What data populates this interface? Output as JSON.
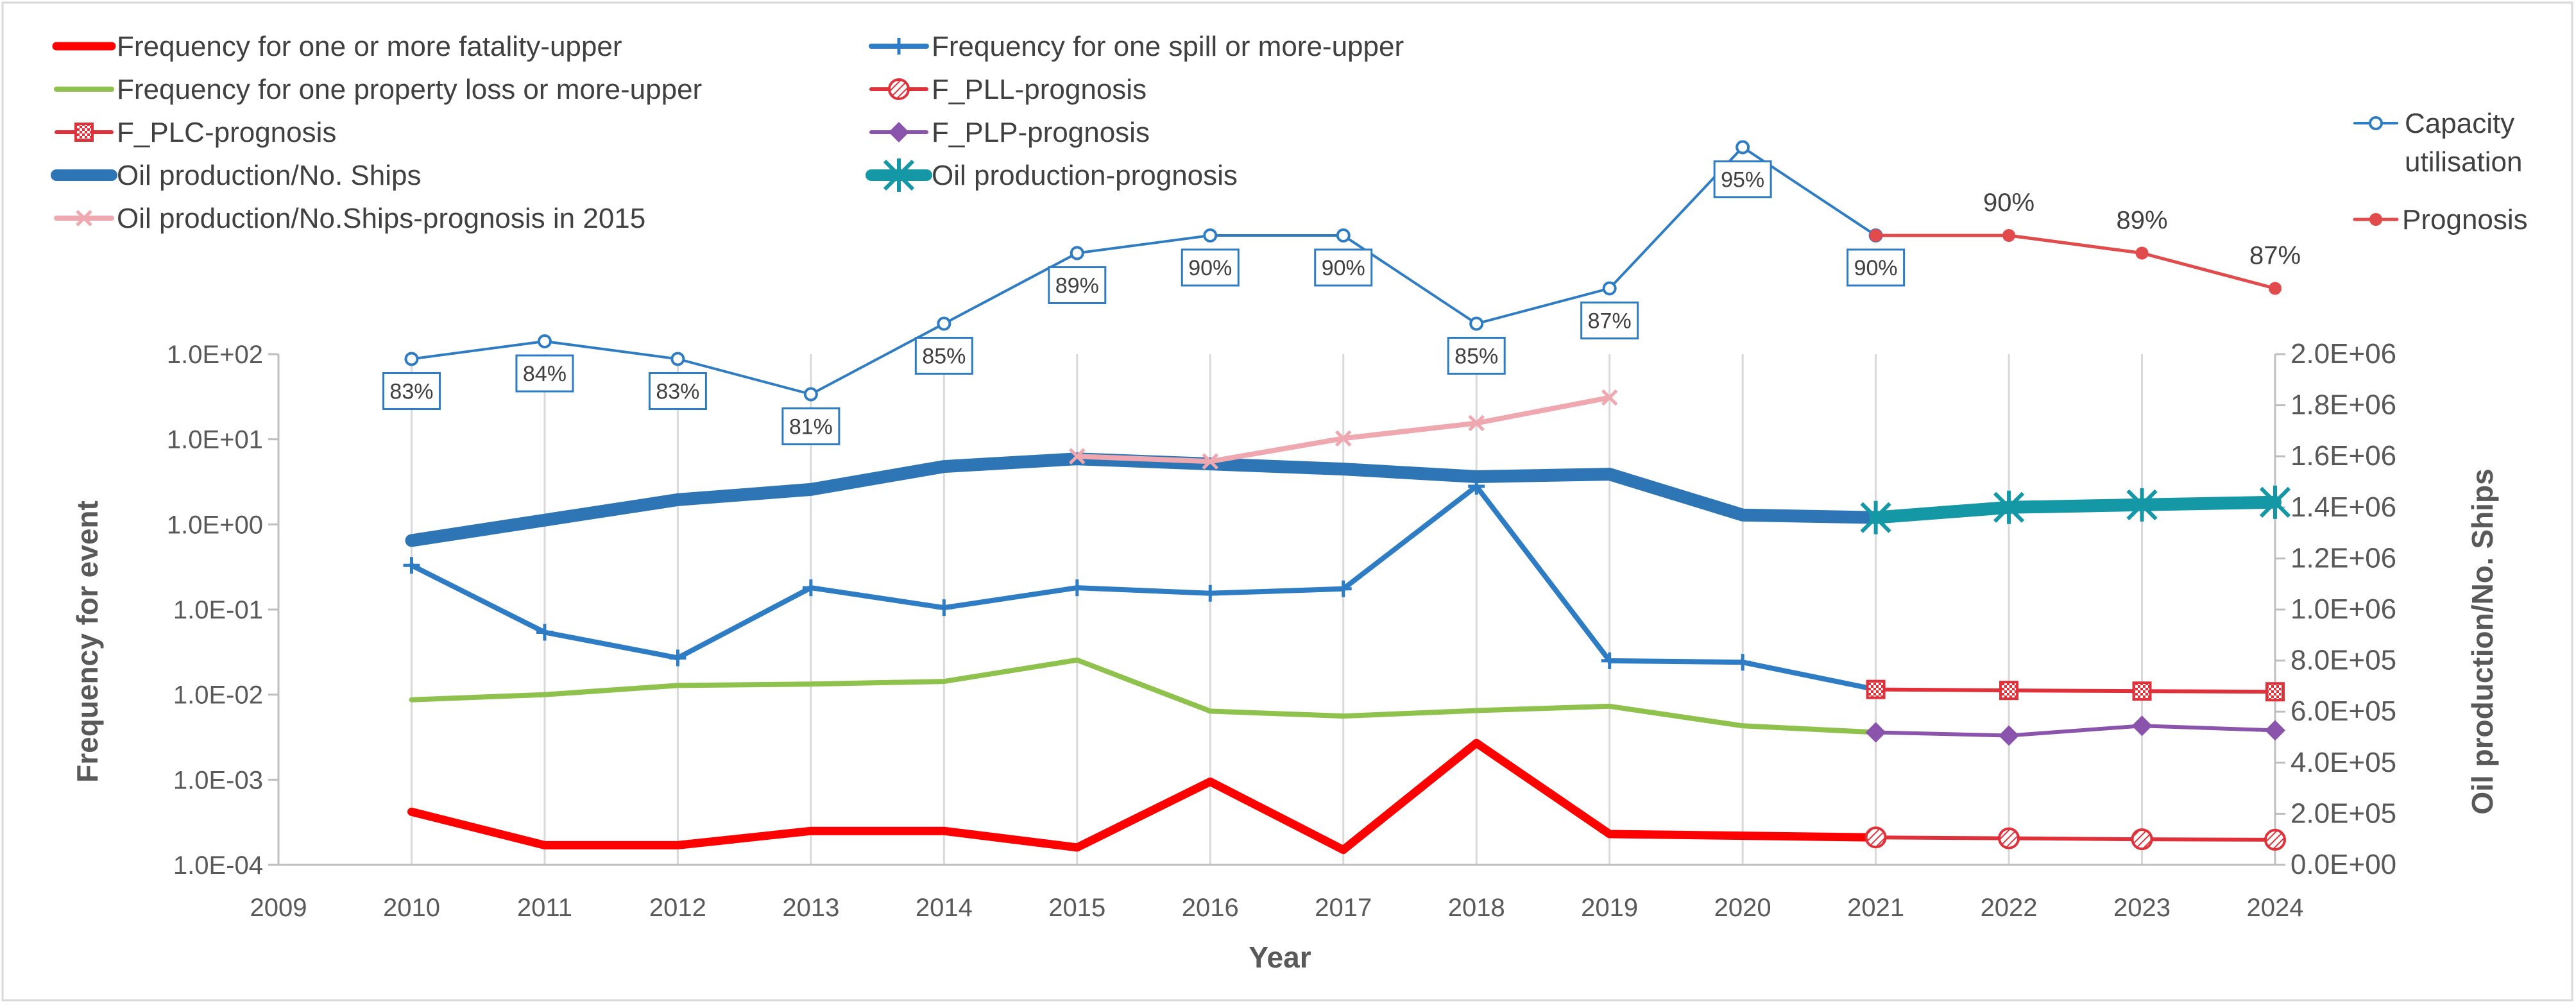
{
  "chart_data": {
    "type": "line",
    "xlabel": "Year",
    "ylabel_left": "Frequency for event",
    "ylabel_right": "Oil production/No. Ships",
    "xlim": [
      2009,
      2024
    ],
    "x_ticks": [
      "2009",
      "2010",
      "2011",
      "2012",
      "2013",
      "2014",
      "2015",
      "2016",
      "2017",
      "2018",
      "2019",
      "2020",
      "2021",
      "2022",
      "2023",
      "2024"
    ],
    "y_left_scale": "log",
    "y_left_ticks": [
      "1.0E-04",
      "1.0E-03",
      "1.0E-02",
      "1.0E-01",
      "1.0E+00",
      "1.0E+01",
      "1.0E+02"
    ],
    "y_right_ticks": [
      "0.0E+00",
      "2.0E+05",
      "4.0E+05",
      "6.0E+05",
      "8.0E+05",
      "1.0E+06",
      "1.2E+06",
      "1.4E+06",
      "1.6E+06",
      "1.8E+06",
      "2.0E+06"
    ],
    "y_right_range": [
      0,
      2000000
    ],
    "capacity_range": [
      80,
      100
    ],
    "series": [
      {
        "name": "Frequency for one or more fatality-upper",
        "axis": "left",
        "color": "#ff0000",
        "width": 13,
        "marker": "none",
        "x": [
          2010,
          2011,
          2012,
          2013,
          2014,
          2015,
          2016,
          2017,
          2018,
          2019,
          2020,
          2021
        ],
        "values": [
          0.00042,
          0.00017,
          0.00017,
          0.00025,
          0.00025,
          0.00016,
          0.00095,
          0.00015,
          0.0027,
          0.00023,
          0.00022,
          0.00021
        ]
      },
      {
        "name": "Frequency for one spill or more-upper",
        "axis": "left",
        "color": "#2e7cc4",
        "width": 8,
        "marker": "plus",
        "x": [
          2010,
          2011,
          2012,
          2013,
          2014,
          2015,
          2016,
          2017,
          2018,
          2019,
          2020,
          2021
        ],
        "values": [
          0.33,
          0.054,
          0.027,
          0.18,
          0.105,
          0.18,
          0.155,
          0.175,
          2.8,
          0.025,
          0.024,
          0.0115
        ]
      },
      {
        "name": "Frequency for one property loss or more-upper",
        "axis": "left",
        "color": "#8fc24d",
        "width": 8,
        "marker": "none",
        "x": [
          2010,
          2011,
          2012,
          2013,
          2014,
          2015,
          2016,
          2017,
          2018,
          2019,
          2020,
          2021
        ],
        "values": [
          0.0087,
          0.01,
          0.0128,
          0.0133,
          0.0143,
          0.0255,
          0.0064,
          0.0056,
          0.0065,
          0.0073,
          0.0043,
          0.0036
        ]
      },
      {
        "name": "F_PLL-prognosis",
        "axis": "left",
        "color": "#e0303a",
        "width": 6,
        "marker": "hatched-circle",
        "x": [
          2021,
          2022,
          2023,
          2024
        ],
        "values": [
          0.00021,
          0.000205,
          0.0002,
          0.000197
        ]
      },
      {
        "name": "F_PLC-prognosis",
        "axis": "left",
        "color": "#e0303a",
        "width": 6,
        "marker": "hatched-square",
        "x": [
          2021,
          2022,
          2023,
          2024
        ],
        "values": [
          0.0115,
          0.0112,
          0.011,
          0.0108
        ]
      },
      {
        "name": "F_PLP-prognosis",
        "axis": "left",
        "color": "#8a53ac",
        "width": 6,
        "marker": "diamond",
        "x": [
          2021,
          2022,
          2023,
          2024
        ],
        "values": [
          0.0036,
          0.0033,
          0.0043,
          0.0038
        ]
      },
      {
        "name": "Oil production/No. Ships",
        "axis": "right",
        "color": "#2e75b6",
        "width": 20,
        "marker": "none",
        "x": [
          2010,
          2011,
          2012,
          2013,
          2014,
          2015,
          2016,
          2017,
          2018,
          2019,
          2020,
          2021
        ],
        "values": [
          1270000,
          1350000,
          1430000,
          1470000,
          1560000,
          1590000,
          1570000,
          1550000,
          1520000,
          1530000,
          1370000,
          1360000
        ]
      },
      {
        "name": "Oil production-prognosis",
        "axis": "right",
        "color": "#1598a5",
        "width": 20,
        "marker": "asterisk",
        "x": [
          2021,
          2022,
          2023,
          2024
        ],
        "values": [
          1360000,
          1400000,
          1410000,
          1420000
        ]
      },
      {
        "name": "Oil production/No.Ships-prognosis in 2015",
        "axis": "right",
        "color": "#f0a8b0",
        "width": 8,
        "marker": "x",
        "x": [
          2015,
          2016,
          2017,
          2018,
          2019
        ],
        "values": [
          1600000,
          1580000,
          1670000,
          1730000,
          1830000
        ]
      },
      {
        "name": "Capacity utilisation",
        "axis": "capacity",
        "color": "#2e7cc4",
        "width": 4,
        "marker": "open-circle",
        "x": [
          2010,
          2011,
          2012,
          2013,
          2014,
          2015,
          2016,
          2017,
          2018,
          2019,
          2020,
          2021
        ],
        "values": [
          83,
          84,
          83,
          81,
          85,
          89,
          90,
          90,
          85,
          87,
          95,
          90
        ],
        "labels": [
          "83%",
          "84%",
          "83%",
          "81%",
          "85%",
          "89%",
          "90%",
          "90%",
          "85%",
          "87%",
          "95%",
          "90%"
        ]
      },
      {
        "name": "Prognosis",
        "axis": "capacity",
        "color": "#e24b4b",
        "width": 5,
        "marker": "dot",
        "x": [
          2021,
          2022,
          2023,
          2024
        ],
        "values": [
          90,
          90,
          89,
          87
        ],
        "labels": [
          "",
          "90%",
          "89%",
          "87%"
        ]
      }
    ]
  }
}
